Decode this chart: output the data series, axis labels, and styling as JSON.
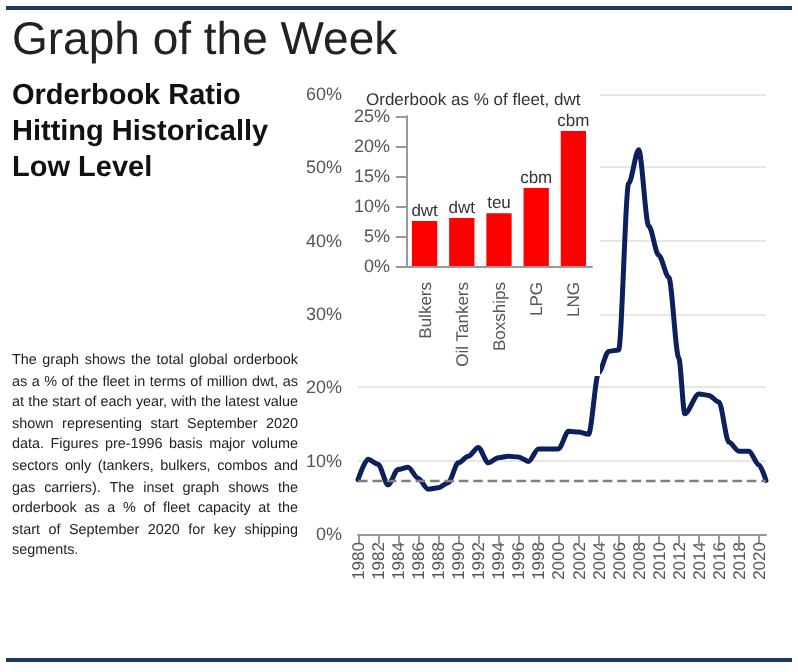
{
  "chart_data": [
    {
      "type": "line",
      "title": "Graph of the Week",
      "subtitle": "Orderbook Ratio Hitting Historically Low Level",
      "annotations": [
        "The graph shows the total global orderbook as a % of the fleet in terms of million dwt, as at the start of each year, with the latest value shown representing start September 2020 data. Figures pre-1996 basis major volume sectors only (tankers, bulkers, combos and gas carriers). The inset graph shows the orderbook as a % of fleet capacity at the start of September 2020 for key shipping segments."
      ],
      "series": [
        {
          "color": "#0d1f5c",
          "x": [
            1980,
            1981,
            1982,
            1983,
            1984,
            1985,
            1986,
            1987,
            1988,
            1989,
            1990,
            1991,
            1992,
            1993,
            1994,
            1995,
            1996,
            1997,
            1998,
            1999,
            2000,
            2001,
            2002,
            2003,
            2004,
            2005,
            2006,
            2007,
            2008,
            2009,
            2010,
            2011,
            2012,
            2012.6,
            2014,
            2015,
            2016,
            2017,
            2018,
            2019,
            2020,
            2020.7
          ],
          "values": [
            7.4,
            10.2,
            9.5,
            6.7,
            8.8,
            9.1,
            7.6,
            6.1,
            6.3,
            7.0,
            9.7,
            10.6,
            11.8,
            9.7,
            10.4,
            10.6,
            10.5,
            9.9,
            11.6,
            11.6,
            11.6,
            14.0,
            13.9,
            13.6,
            22,
            24.9,
            25.1,
            47.8,
            52.4,
            42,
            38,
            35,
            24,
            16.4,
            19.1,
            18.9,
            18.0,
            12.5,
            11.3,
            11.3,
            9.4,
            7.3
          ]
        }
      ],
      "xlim": [
        1980,
        2020.7
      ],
      "xticks": [
        1980,
        1982,
        1984,
        1986,
        1988,
        1990,
        1992,
        1994,
        1996,
        1998,
        2000,
        2002,
        2004,
        2006,
        2008,
        2010,
        2012,
        2014,
        2016,
        2018,
        2020
      ],
      "ylim": [
        0,
        60
      ],
      "yticks": [
        {
          "value": 0,
          "label": "0%"
        },
        {
          "value": 10,
          "label": "10%"
        },
        {
          "value": 20,
          "label": "20%"
        },
        {
          "value": 30,
          "label": "30%"
        },
        {
          "value": 40,
          "label": "40%"
        },
        {
          "value": 50,
          "label": "50%"
        },
        {
          "value": 60,
          "label": "60%"
        }
      ],
      "ref_lines": [
        {
          "axis": "y",
          "value": 7.3,
          "color": "#808080",
          "line_style": "dashed"
        }
      ],
      "grid": "y",
      "marker": "none",
      "line_style": "solid"
    },
    {
      "type": "bar",
      "title": "Orderbook as % of fleet, dwt",
      "categories": [
        "Bulkers",
        "Oil Tankers",
        "Boxships",
        "LPG",
        "LNG"
      ],
      "values": [
        7.5,
        8,
        8.8,
        13,
        22.5
      ],
      "value_labels": [
        "dwt",
        "dwt",
        "teu",
        "cbm",
        "cbm"
      ],
      "color": "#ff0000",
      "ylim": [
        0,
        25
      ],
      "yticks": [
        {
          "value": 0,
          "label": "0%"
        },
        {
          "value": 5,
          "label": "5%"
        },
        {
          "value": 10,
          "label": "10%"
        },
        {
          "value": 15,
          "label": "15%"
        },
        {
          "value": 20,
          "label": "20%"
        },
        {
          "value": 25,
          "label": "25%"
        }
      ],
      "grid": false
    }
  ]
}
